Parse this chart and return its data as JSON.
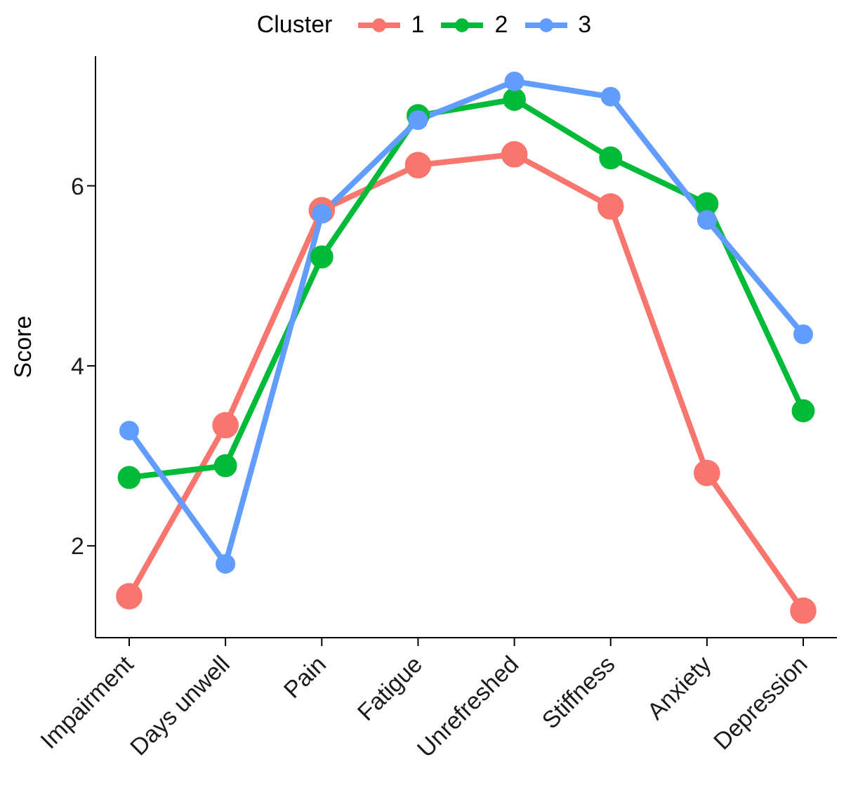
{
  "chart_data": {
    "type": "line",
    "ylabel": "Score",
    "legend_title": "Cluster",
    "legend": "top",
    "marker": "circle",
    "line_style": "solid",
    "grid": false,
    "categories": [
      "Impairment",
      "Days unwell",
      "Pain",
      "Fatigue",
      "Unrefreshed",
      "Stiffness",
      "Anxiety",
      "Depression"
    ],
    "ylim": [
      0.98,
      7.44
    ],
    "yticks": [
      2,
      4,
      6
    ],
    "series": [
      {
        "name": "1",
        "color": "#f8766d",
        "values": [
          1.44,
          3.34,
          5.73,
          6.23,
          6.35,
          5.77,
          2.81,
          1.28
        ]
      },
      {
        "name": "2",
        "color": "#00ba38",
        "values": [
          2.76,
          2.89,
          5.21,
          6.78,
          6.96,
          6.31,
          5.8,
          3.5
        ]
      },
      {
        "name": "3",
        "color": "#619cff",
        "values": [
          3.28,
          1.8,
          5.69,
          6.73,
          7.16,
          6.99,
          5.62,
          4.35
        ]
      }
    ]
  }
}
